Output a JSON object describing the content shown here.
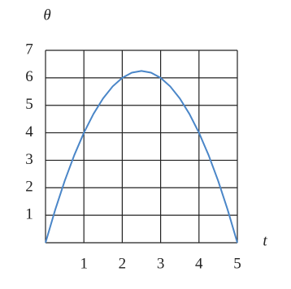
{
  "chart_data": {
    "type": "line",
    "x_label": "t",
    "y_label": "θ",
    "x": [
      0,
      0.25,
      0.5,
      0.75,
      1,
      1.25,
      1.5,
      1.75,
      2,
      2.25,
      2.5,
      2.75,
      3,
      3.25,
      3.5,
      3.75,
      4,
      4.25,
      4.5,
      4.75,
      5
    ],
    "values": [
      0,
      1.1875,
      2.25,
      3.1875,
      4,
      4.6875,
      5.25,
      5.6875,
      6,
      6.1875,
      6.25,
      6.1875,
      6,
      5.6875,
      5.25,
      4.6875,
      4,
      3.1875,
      2.25,
      1.1875,
      0
    ],
    "color": "#4a86c8",
    "xlim": [
      0,
      5
    ],
    "xticks": [
      1,
      2,
      3,
      4,
      5
    ],
    "ylim": [
      0,
      7
    ],
    "yticks": [
      1,
      2,
      3,
      4,
      5,
      6,
      7
    ],
    "grid": true
  }
}
